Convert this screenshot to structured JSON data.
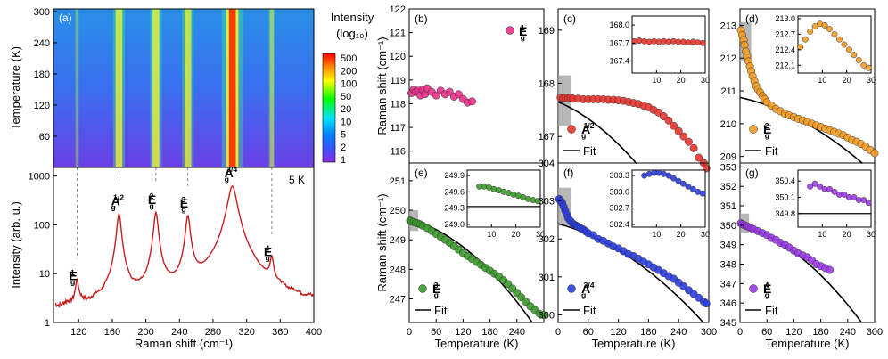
{
  "colors": {
    "b": "#e8308a",
    "c": "#e8342f",
    "d": "#f39c22",
    "e": "#3a9a2a",
    "f": "#2a3ce0",
    "g": "#9b3ae6",
    "spectrum": "#c81e1e",
    "fit": "#000000"
  },
  "chart_data": [
    {
      "id": "a",
      "type": "heatmap",
      "panel_label": "(a)",
      "xlim": [
        90,
        400
      ],
      "ylim": [
        0,
        305
      ],
      "ylabel": "Temperature (K)",
      "yticks": [
        60,
        120,
        180,
        240,
        300
      ],
      "colorbar": {
        "title_line1": "Intensity",
        "title_line2": "(log₁₀)",
        "ticks": [
          "500",
          "200",
          "100",
          "50",
          "20",
          "10",
          "5",
          "2",
          "1"
        ],
        "colors": [
          "#ff0000",
          "#ff8000",
          "#ffff00",
          "#00ff00",
          "#00e0ff",
          "#0080ff",
          "#4050ff",
          "#8a2be2"
        ]
      },
      "lines": [
        {
          "x": 118,
          "w": 2,
          "strength": 0.35
        },
        {
          "x": 168,
          "w": 5,
          "strength": 0.9
        },
        {
          "x": 212,
          "w": 5,
          "strength": 0.9
        },
        {
          "x": 250,
          "w": 5,
          "strength": 0.85
        },
        {
          "x": 303,
          "w": 9,
          "strength": 1.0
        },
        {
          "x": 350,
          "w": 3,
          "strength": 0.6
        }
      ]
    },
    {
      "id": "a_spectrum",
      "type": "line",
      "annotation": "5 K",
      "xlabel": "Raman shift (cm⁻¹)",
      "ylabel": "Intensity (arb. u.)",
      "xlim": [
        90,
        400
      ],
      "ylim": [
        1,
        1500
      ],
      "yscale": "log",
      "xticks": [
        "120",
        "160",
        "200",
        "240",
        "280",
        "320",
        "360",
        "400"
      ],
      "yticks": [
        "1",
        "10",
        "100",
        "1000"
      ],
      "baseline": 1.7,
      "peaks": [
        {
          "x": 118,
          "h": 4.8,
          "w": 2
        },
        {
          "x": 168,
          "h": 165,
          "w": 2.5
        },
        {
          "x": 212,
          "h": 175,
          "w": 2.5
        },
        {
          "x": 250,
          "h": 150,
          "w": 2.5
        },
        {
          "x": 303,
          "h": 620,
          "w": 5
        },
        {
          "x": 350,
          "h": 15,
          "w": 2
        }
      ],
      "peak_labels": [
        {
          "base": "E",
          "sub": "g",
          "sup": "1",
          "x": 118
        },
        {
          "base": "A",
          "sub": "g",
          "sup": "1/2",
          "x": 168
        },
        {
          "base": "E",
          "sub": "g",
          "sup": "2",
          "x": 212
        },
        {
          "base": "E",
          "sub": "g",
          "sup": "3",
          "x": 250
        },
        {
          "base": "A",
          "sub": "g",
          "sup": "3/4",
          "x": 303
        },
        {
          "base": "E",
          "sub": "g",
          "sup": "4",
          "x": 350
        }
      ]
    },
    {
      "id": "b",
      "type": "scatter",
      "panel_label": "(b)",
      "ylabel": "Raman shift (cm⁻¹)",
      "xlim": [
        0,
        300
      ],
      "ylim": [
        115.5,
        122
      ],
      "yticks": [
        "116",
        "117",
        "118",
        "119",
        "120",
        "121",
        "122"
      ],
      "legend": {
        "base": "E",
        "sub": "g",
        "sup": "1"
      },
      "x": [
        5,
        10,
        15,
        20,
        25,
        30,
        35,
        40,
        50,
        60,
        70,
        80,
        90,
        100,
        110,
        120,
        130,
        140
      ],
      "y": [
        118.45,
        118.6,
        118.5,
        118.55,
        118.35,
        118.6,
        118.4,
        118.65,
        118.5,
        118.35,
        118.55,
        118.4,
        118.5,
        118.3,
        118.4,
        118.2,
        118.05,
        118.1
      ]
    },
    {
      "id": "c",
      "type": "scatter",
      "panel_label": "(c)",
      "xlabel": "Temperature (K)",
      "xlim": [
        0,
        300
      ],
      "ylim": [
        166.5,
        169.4
      ],
      "yticks": [
        "167",
        "168",
        "169"
      ],
      "legend": {
        "base": "A",
        "sub": "g",
        "sup": "1/2"
      },
      "fit_label": "Fit",
      "x": [
        5,
        10,
        15,
        20,
        25,
        30,
        40,
        50,
        60,
        70,
        80,
        90,
        100,
        110,
        120,
        130,
        140,
        150,
        160,
        170,
        180,
        190,
        200,
        210,
        220,
        230,
        240,
        250,
        260,
        270,
        280,
        290,
        295
      ],
      "y": [
        167.73,
        167.72,
        167.73,
        167.72,
        167.73,
        167.71,
        167.71,
        167.7,
        167.7,
        167.7,
        167.7,
        167.7,
        167.69,
        167.69,
        167.68,
        167.67,
        167.65,
        167.63,
        167.61,
        167.58,
        167.55,
        167.5,
        167.45,
        167.38,
        167.3,
        167.2,
        167.1,
        167.0,
        166.9,
        166.78,
        166.6,
        166.5,
        166.4
      ],
      "fit": {
        "w0": 167.65,
        "A": -0.004,
        "B": -2.2e-05
      },
      "inset": {
        "xlim": [
          0,
          30
        ],
        "ylim": [
          167.2,
          168.15
        ],
        "yticks": [
          "168.0",
          "167.7",
          "167.4"
        ],
        "xticks": [
          "10",
          "20",
          "30"
        ],
        "fit_level": null,
        "x": [
          1,
          3,
          5,
          7,
          9,
          11,
          13,
          15,
          17,
          19,
          21,
          23,
          25,
          27,
          29
        ],
        "y": [
          167.73,
          167.74,
          167.73,
          167.72,
          167.73,
          167.72,
          167.73,
          167.72,
          167.73,
          167.72,
          167.72,
          167.71,
          167.72,
          167.71,
          167.7
        ]
      },
      "shade": {
        "x": [
          0,
          25
        ],
        "y": [
          167.2,
          168.15
        ]
      }
    },
    {
      "id": "d",
      "type": "scatter",
      "panel_label": "(d)",
      "xlabel": "Temperature (K)",
      "xlim": [
        0,
        300
      ],
      "ylim": [
        208.8,
        213.5
      ],
      "yticks": [
        "209",
        "210",
        "211",
        "212",
        "213"
      ],
      "legend": {
        "base": "E",
        "sub": "g",
        "sup": "2"
      },
      "fit_label": "Fit",
      "x": [
        2,
        5,
        8,
        10,
        13,
        16,
        19,
        22,
        25,
        28,
        32,
        36,
        40,
        45,
        50,
        55,
        60,
        70,
        80,
        90,
        100,
        110,
        120,
        130,
        140,
        150,
        160,
        170,
        180,
        190,
        200,
        210,
        220,
        230,
        240,
        250,
        260,
        270,
        280,
        290,
        300
      ],
      "y": [
        212.85,
        212.7,
        212.55,
        212.4,
        212.2,
        212.05,
        211.9,
        211.75,
        211.6,
        211.45,
        211.3,
        211.15,
        211.05,
        210.95,
        210.85,
        210.75,
        210.65,
        210.55,
        210.45,
        210.38,
        210.3,
        210.25,
        210.2,
        210.15,
        210.1,
        210.05,
        210.0,
        209.95,
        209.9,
        209.85,
        209.8,
        209.75,
        209.7,
        209.65,
        209.58,
        209.5,
        209.45,
        209.38,
        209.3,
        209.2,
        209.1
      ],
      "fit": {
        "w0": 210.8,
        "A": -0.003,
        "B": -1.6e-05
      },
      "inset": {
        "xlim": [
          0,
          30
        ],
        "ylim": [
          211.95,
          213.05
        ],
        "yticks": [
          "213.0",
          "212.7",
          "212.4",
          "212.1"
        ],
        "xticks": [
          "10",
          "20",
          "30"
        ],
        "fit_level": null,
        "x": [
          1,
          3,
          5,
          7,
          9,
          11,
          13,
          15,
          17,
          19,
          21,
          23,
          25,
          27,
          29
        ],
        "y": [
          212.45,
          212.6,
          212.75,
          212.85,
          212.9,
          212.87,
          212.8,
          212.7,
          212.6,
          212.5,
          212.4,
          212.3,
          212.2,
          212.1,
          212.05
        ]
      },
      "shade": {
        "x": [
          0,
          25
        ],
        "y": [
          211.9,
          213.1
        ]
      }
    },
    {
      "id": "e",
      "type": "scatter",
      "panel_label": "(e)",
      "ylabel": "Raman shift (cm⁻¹)",
      "xlabel": "Temperature (K)",
      "xlim": [
        0,
        300
      ],
      "ylim": [
        246.2,
        251.6
      ],
      "yticks": [
        "247",
        "248",
        "249",
        "250",
        "251"
      ],
      "xticks": [
        "0",
        "60",
        "120",
        "180",
        "240"
      ],
      "legend": {
        "base": "E",
        "sub": "g",
        "sup": "3"
      },
      "fit_label": "Fit",
      "x": [
        2,
        5,
        10,
        15,
        20,
        25,
        30,
        40,
        50,
        60,
        70,
        80,
        90,
        100,
        110,
        120,
        130,
        140,
        150,
        160,
        170,
        180,
        190,
        200,
        210,
        220,
        230,
        240,
        250,
        260,
        270,
        280,
        290,
        300
      ],
      "y": [
        249.65,
        249.62,
        249.6,
        249.57,
        249.55,
        249.52,
        249.48,
        249.4,
        249.3,
        249.2,
        249.1,
        249.0,
        248.9,
        248.78,
        248.67,
        248.55,
        248.45,
        248.35,
        248.25,
        248.15,
        248.05,
        247.95,
        247.85,
        247.75,
        247.63,
        247.5,
        247.35,
        247.2,
        247.05,
        246.9,
        246.75,
        246.62,
        246.5,
        246.45
      ],
      "fit": {
        "w0": 249.7,
        "A": -0.004,
        "B": -3.2e-05
      },
      "inset": {
        "xlim": [
          0,
          30
        ],
        "ylim": [
          248.95,
          250.0
        ],
        "yticks": [
          "249.9",
          "249.6",
          "249.3",
          "249.0"
        ],
        "xticks": [
          "10",
          "20",
          "30"
        ],
        "fit_level": 249.33,
        "x": [
          5,
          7,
          9,
          11,
          13,
          15,
          17,
          19,
          21,
          23,
          25,
          27,
          29
        ],
        "y": [
          249.7,
          249.7,
          249.68,
          249.65,
          249.63,
          249.6,
          249.58,
          249.55,
          249.53,
          249.5,
          249.47,
          249.45,
          249.43
        ]
      },
      "shade": {
        "x": [
          0,
          20
        ],
        "y": [
          249.3,
          250.0
        ]
      }
    },
    {
      "id": "f",
      "type": "scatter",
      "panel_label": "(f)",
      "xlabel": "Temperature (K)",
      "xlim": [
        0,
        300
      ],
      "ylim": [
        299.8,
        304.0
      ],
      "yticks": [
        "300",
        "301",
        "302",
        "303",
        "304"
      ],
      "xticks": [
        "0",
        "60",
        "120",
        "180",
        "240",
        "300"
      ],
      "legend": {
        "base": "A",
        "sub": "g",
        "sup": "3/4"
      },
      "fit_label": "Fit",
      "x": [
        2,
        5,
        8,
        11,
        14,
        17,
        20,
        24,
        28,
        32,
        36,
        40,
        45,
        50,
        55,
        60,
        70,
        80,
        90,
        100,
        110,
        120,
        130,
        140,
        150,
        160,
        170,
        180,
        190,
        200,
        210,
        220,
        230,
        240,
        250,
        260,
        270,
        280,
        290,
        295
      ],
      "y": [
        303.05,
        303.0,
        302.95,
        302.85,
        302.75,
        302.65,
        302.55,
        302.48,
        302.42,
        302.38,
        302.35,
        302.32,
        302.28,
        302.25,
        302.2,
        302.15,
        302.1,
        302.0,
        301.95,
        301.88,
        301.8,
        301.75,
        301.68,
        301.6,
        301.55,
        301.48,
        301.4,
        301.33,
        301.25,
        301.18,
        301.1,
        301.02,
        300.95,
        300.85,
        300.75,
        300.65,
        300.55,
        300.45,
        300.35,
        300.3
      ],
      "fit": {
        "w0": 302.4,
        "A": -0.0035,
        "B": -1.9e-05
      },
      "inset": {
        "xlim": [
          0,
          30
        ],
        "ylim": [
          302.35,
          303.4
        ],
        "yticks": [
          "303.3",
          "303.0",
          "302.7",
          "302.4"
        ],
        "xticks": [
          "10",
          "20",
          "30"
        ],
        "fit_level": null,
        "x": [
          5,
          7,
          9,
          11,
          13,
          15,
          17,
          19,
          21,
          23,
          25,
          27,
          29
        ],
        "y": [
          303.3,
          303.33,
          303.35,
          303.35,
          303.33,
          303.3,
          303.25,
          303.2,
          303.15,
          303.1,
          303.05,
          303.0,
          302.97
        ]
      },
      "shade": {
        "x": [
          0,
          25
        ],
        "y": [
          302.35,
          303.35
        ]
      }
    },
    {
      "id": "g",
      "type": "scatter",
      "panel_label": "(g)",
      "xlabel": "Temperature (K)",
      "xlim": [
        0,
        300
      ],
      "ylim": [
        345,
        353.2
      ],
      "yticks": [
        "345",
        "346",
        "347",
        "348",
        "349",
        "350",
        "351",
        "352",
        "353"
      ],
      "xticks": [
        "0",
        "60",
        "120",
        "180",
        "240",
        "300"
      ],
      "legend": {
        "base": "E",
        "sub": "g",
        "sup": "4"
      },
      "fit_label": "Fit",
      "x": [
        2,
        5,
        10,
        15,
        20,
        25,
        30,
        40,
        50,
        60,
        70,
        80,
        90,
        100,
        110,
        120,
        130,
        140,
        150,
        160,
        170,
        180,
        190,
        200
      ],
      "y": [
        350.1,
        350.05,
        350.0,
        349.95,
        349.9,
        349.85,
        349.8,
        349.7,
        349.6,
        349.5,
        349.35,
        349.25,
        349.1,
        349.0,
        348.85,
        348.7,
        348.55,
        348.45,
        348.35,
        348.2,
        348.0,
        347.9,
        347.8,
        347.7
      ],
      "fit": {
        "w0": 350.0,
        "A": -0.006,
        "B": -4.6e-05
      },
      "inset": {
        "xlim": [
          0,
          30
        ],
        "ylim": [
          349.55,
          350.6
        ],
        "yticks": [
          "350.4",
          "350.1",
          "349.8"
        ],
        "xticks": [
          "10",
          "20",
          "30"
        ],
        "fit_level": 349.8,
        "x": [
          5,
          7,
          9,
          11,
          13,
          15,
          17,
          19,
          21,
          23,
          25,
          27,
          29
        ],
        "y": [
          350.3,
          350.35,
          350.3,
          350.25,
          350.25,
          350.2,
          350.15,
          350.15,
          350.1,
          350.1,
          350.05,
          350.05,
          350.0
        ]
      },
      "shade": {
        "x": [
          0,
          20
        ],
        "y": [
          349.6,
          350.6
        ]
      }
    }
  ]
}
